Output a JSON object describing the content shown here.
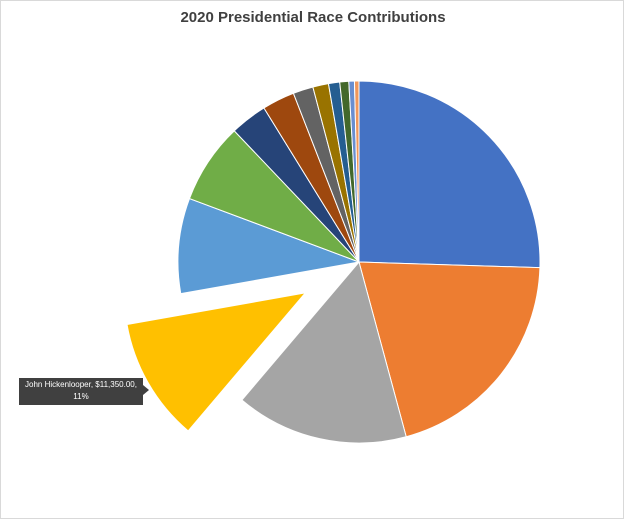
{
  "chart_data": {
    "type": "pie",
    "title": "2020 Presidential Race Contributions",
    "slices": [
      {
        "value": 25.5,
        "color": "#4472C4"
      },
      {
        "value": 20.3,
        "color": "#ED7D31"
      },
      {
        "value": 15.4,
        "color": "#A5A5A5"
      },
      {
        "name": "John Hickenlooper",
        "value": 11,
        "amount": "$11,350.00",
        "percent": "11%",
        "color": "#FFC000",
        "exploded": true
      },
      {
        "value": 8.5,
        "color": "#5B9BD5"
      },
      {
        "value": 7.2,
        "color": "#70AD47"
      },
      {
        "value": 3.3,
        "color": "#264478"
      },
      {
        "value": 2.9,
        "color": "#9E480E"
      },
      {
        "value": 1.8,
        "color": "#636363"
      },
      {
        "value": 1.4,
        "color": "#997300"
      },
      {
        "value": 1.0,
        "color": "#255E91"
      },
      {
        "value": 0.8,
        "color": "#43682B"
      },
      {
        "value": 0.5,
        "color": "#698ED0"
      },
      {
        "value": 0.4,
        "color": "#F1975A"
      }
    ],
    "data_label": {
      "text": "John Hickenlooper, $11,350.00, 11%"
    },
    "legend": "none"
  }
}
